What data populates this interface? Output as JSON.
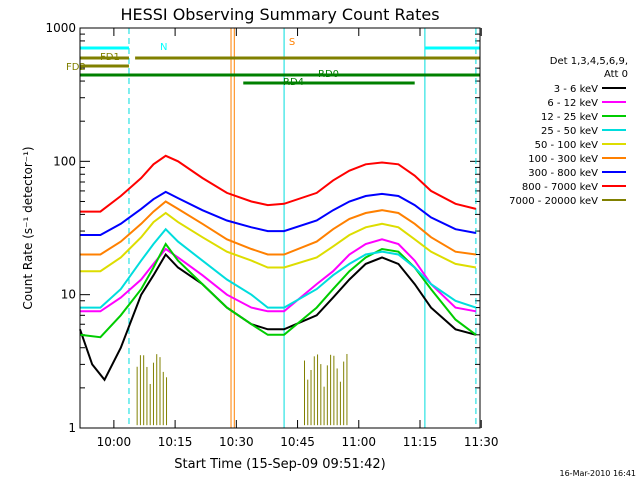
{
  "chart_data": {
    "type": "line",
    "title": "HESSI Observing Summary Count Rates",
    "xlabel": "Start Time (15-Sep-09 09:51:42)",
    "ylabel": "Count Rate (s⁻¹ detector⁻¹)",
    "yscale": "log",
    "ylim": [
      1,
      1000
    ],
    "xlim_minutes_after_start": [
      0,
      98
    ],
    "x_ticks": [
      "10:00",
      "10:15",
      "10:30",
      "10:45",
      "11:00",
      "11:15",
      "11:30"
    ],
    "y_ticks": [
      "1",
      "10",
      "100",
      "1000"
    ],
    "timestamp": "16-Mar-2010 16:41",
    "legend_header": [
      "Det 1,3,4,5,6,9,",
      "Att 0"
    ],
    "legend_placement": "right",
    "series": [
      {
        "name": "3 - 6 keV",
        "color": "#000000",
        "x": [
          0,
          3,
          6,
          10,
          15,
          18,
          21,
          24,
          30,
          36,
          42,
          46,
          50,
          58,
          62,
          66,
          70,
          74,
          78,
          82,
          86,
          92,
          97
        ],
        "y": [
          5.5,
          3,
          2.3,
          4,
          10,
          14,
          20,
          16,
          12,
          8,
          6,
          5.5,
          5.5,
          7,
          9.5,
          13,
          17,
          19,
          17,
          12,
          8,
          5.5,
          5
        ]
      },
      {
        "name": "6 - 12 keV",
        "color": "#ff00ff",
        "x": [
          0,
          5,
          10,
          15,
          18,
          21,
          24,
          30,
          36,
          42,
          46,
          50,
          58,
          62,
          66,
          70,
          74,
          78,
          82,
          86,
          92,
          97
        ],
        "y": [
          7.5,
          7.5,
          9.5,
          13,
          17,
          22,
          19,
          14,
          10,
          8,
          7.5,
          7.5,
          12,
          15,
          20,
          24,
          26,
          24,
          18,
          12,
          8,
          7.5
        ]
      },
      {
        "name": "12 - 25 keV",
        "color": "#00cc00",
        "x": [
          0,
          5,
          10,
          15,
          18,
          21,
          24,
          30,
          36,
          42,
          46,
          50,
          58,
          62,
          66,
          70,
          74,
          78,
          82,
          86,
          92,
          97
        ],
        "y": [
          5,
          4.8,
          7,
          11,
          16,
          24,
          18,
          12,
          8,
          6,
          5,
          5,
          8,
          11,
          15,
          19,
          22,
          21,
          16,
          11,
          6.5,
          5
        ]
      },
      {
        "name": "25 - 50 keV",
        "color": "#00dddd",
        "x": [
          0,
          5,
          10,
          15,
          18,
          21,
          24,
          30,
          36,
          42,
          46,
          50,
          58,
          62,
          66,
          70,
          74,
          78,
          82,
          86,
          92,
          97
        ],
        "y": [
          8,
          8,
          11,
          18,
          24,
          31,
          25,
          18,
          13,
          10,
          8,
          8,
          11,
          14,
          17,
          20,
          21,
          20,
          16,
          12,
          9,
          8
        ]
      },
      {
        "name": "50 - 100 keV",
        "color": "#dddd00",
        "x": [
          0,
          5,
          10,
          15,
          18,
          21,
          24,
          30,
          36,
          42,
          46,
          50,
          58,
          62,
          66,
          70,
          74,
          78,
          82,
          86,
          92,
          97
        ],
        "y": [
          15,
          15,
          19,
          27,
          35,
          41,
          35,
          27,
          21,
          18,
          16,
          16,
          19,
          23,
          28,
          32,
          34,
          32,
          26,
          21,
          17,
          16
        ]
      },
      {
        "name": "100 - 300 keV",
        "color": "#ff8000",
        "x": [
          0,
          5,
          10,
          15,
          18,
          21,
          24,
          30,
          36,
          42,
          46,
          50,
          58,
          62,
          66,
          70,
          74,
          78,
          82,
          86,
          92,
          97
        ],
        "y": [
          20,
          20,
          25,
          34,
          42,
          50,
          44,
          34,
          26,
          22,
          20,
          20,
          25,
          31,
          37,
          41,
          43,
          41,
          34,
          27,
          21,
          20
        ]
      },
      {
        "name": "300 - 800 keV",
        "color": "#0000ff",
        "x": [
          0,
          5,
          10,
          15,
          18,
          21,
          24,
          30,
          36,
          42,
          46,
          50,
          58,
          62,
          66,
          70,
          74,
          78,
          82,
          86,
          92,
          97
        ],
        "y": [
          28,
          28,
          34,
          44,
          52,
          59,
          53,
          43,
          36,
          32,
          30,
          30,
          36,
          43,
          50,
          55,
          57,
          55,
          47,
          38,
          31,
          29
        ]
      },
      {
        "name": "800 - 7000 keV",
        "color": "#ff0000",
        "x": [
          0,
          5,
          10,
          15,
          18,
          21,
          24,
          30,
          36,
          42,
          46,
          50,
          58,
          62,
          66,
          70,
          74,
          78,
          82,
          86,
          92,
          97
        ],
        "y": [
          42,
          42,
          55,
          75,
          95,
          110,
          100,
          75,
          58,
          50,
          47,
          48,
          58,
          72,
          85,
          95,
          98,
          95,
          78,
          60,
          48,
          44
        ]
      },
      {
        "name": "7000 - 20000 keV",
        "color": "#808000",
        "x": [],
        "y": []
      }
    ],
    "bars": [
      {
        "label": "N",
        "color": "#00ffff"
      },
      {
        "label": "FD1",
        "color": "#808000"
      },
      {
        "label": "FD2",
        "color": "#808000"
      },
      {
        "label": "RD0",
        "color": "#008000"
      },
      {
        "label": "RD4",
        "color": "#008000"
      },
      {
        "label": "S",
        "color": "#ff8000"
      }
    ]
  }
}
